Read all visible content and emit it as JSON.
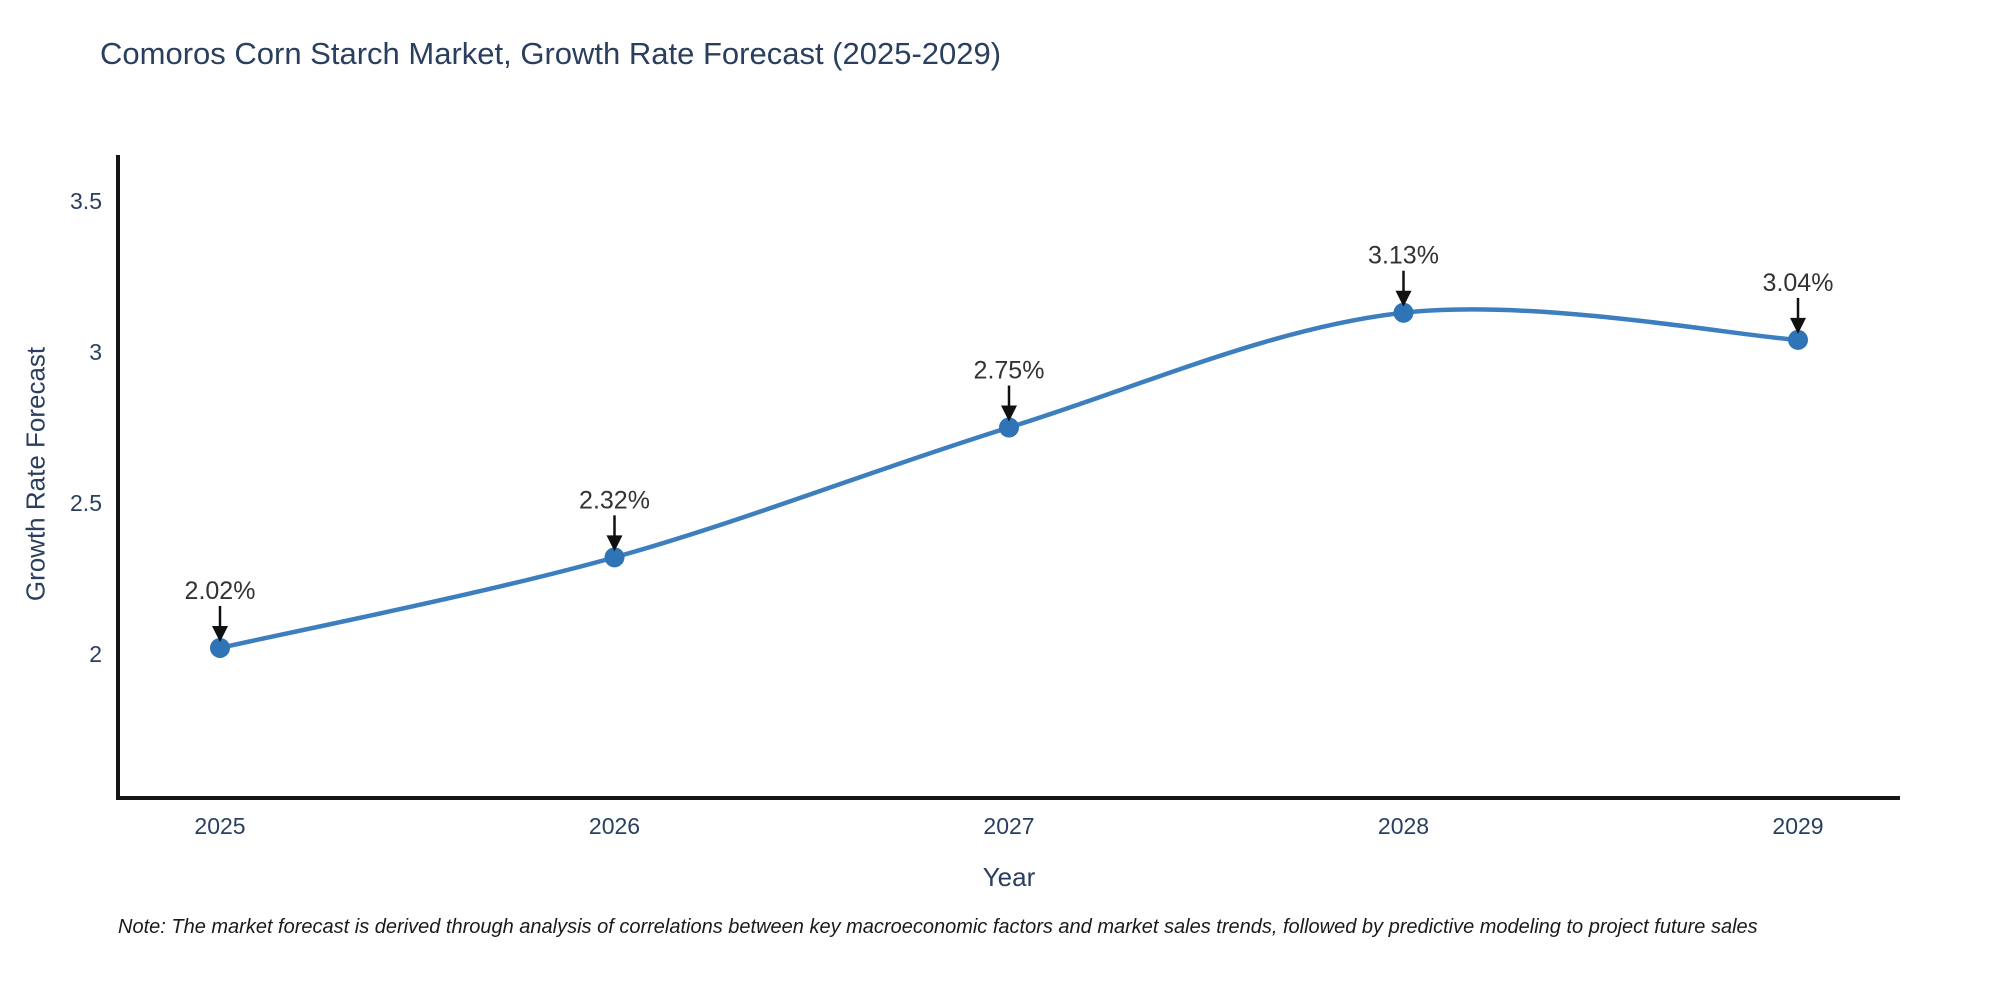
{
  "note": {
    "text": "Note: The market forecast is derived through analysis of correlations between key macroeconomic factors and market sales trends, followed by predictive modeling to project future sales"
  },
  "chart_data": {
    "type": "line",
    "line_shape": "spline",
    "title": "Comoros Corn Starch Market, Growth Rate Forecast (2025-2029)",
    "xlabel": "Year",
    "ylabel": "Growth Rate Forecast",
    "x": [
      2025,
      2026,
      2027,
      2028,
      2029
    ],
    "values": [
      2.02,
      2.32,
      2.75,
      3.13,
      3.04
    ],
    "point_labels": [
      "2.02%",
      "2.32%",
      "2.75%",
      "3.13%",
      "3.04%"
    ],
    "xticks": [
      "2025",
      "2026",
      "2027",
      "2028",
      "2029"
    ],
    "yticks": [
      2,
      2.5,
      3,
      3.5
    ],
    "ylim": [
      1.52,
      3.65
    ],
    "grid": false,
    "legend": false,
    "annotation_style": "black-down-arrows-above-points",
    "colors": {
      "line": "#3d7ebf",
      "marker": "#2e74b6",
      "axis": "#161616",
      "tick_text": "#2a3f5f",
      "title_text": "#2a3f5f",
      "annotation_text": "#333333",
      "arrow": "#111111",
      "background": "#ffffff"
    }
  }
}
